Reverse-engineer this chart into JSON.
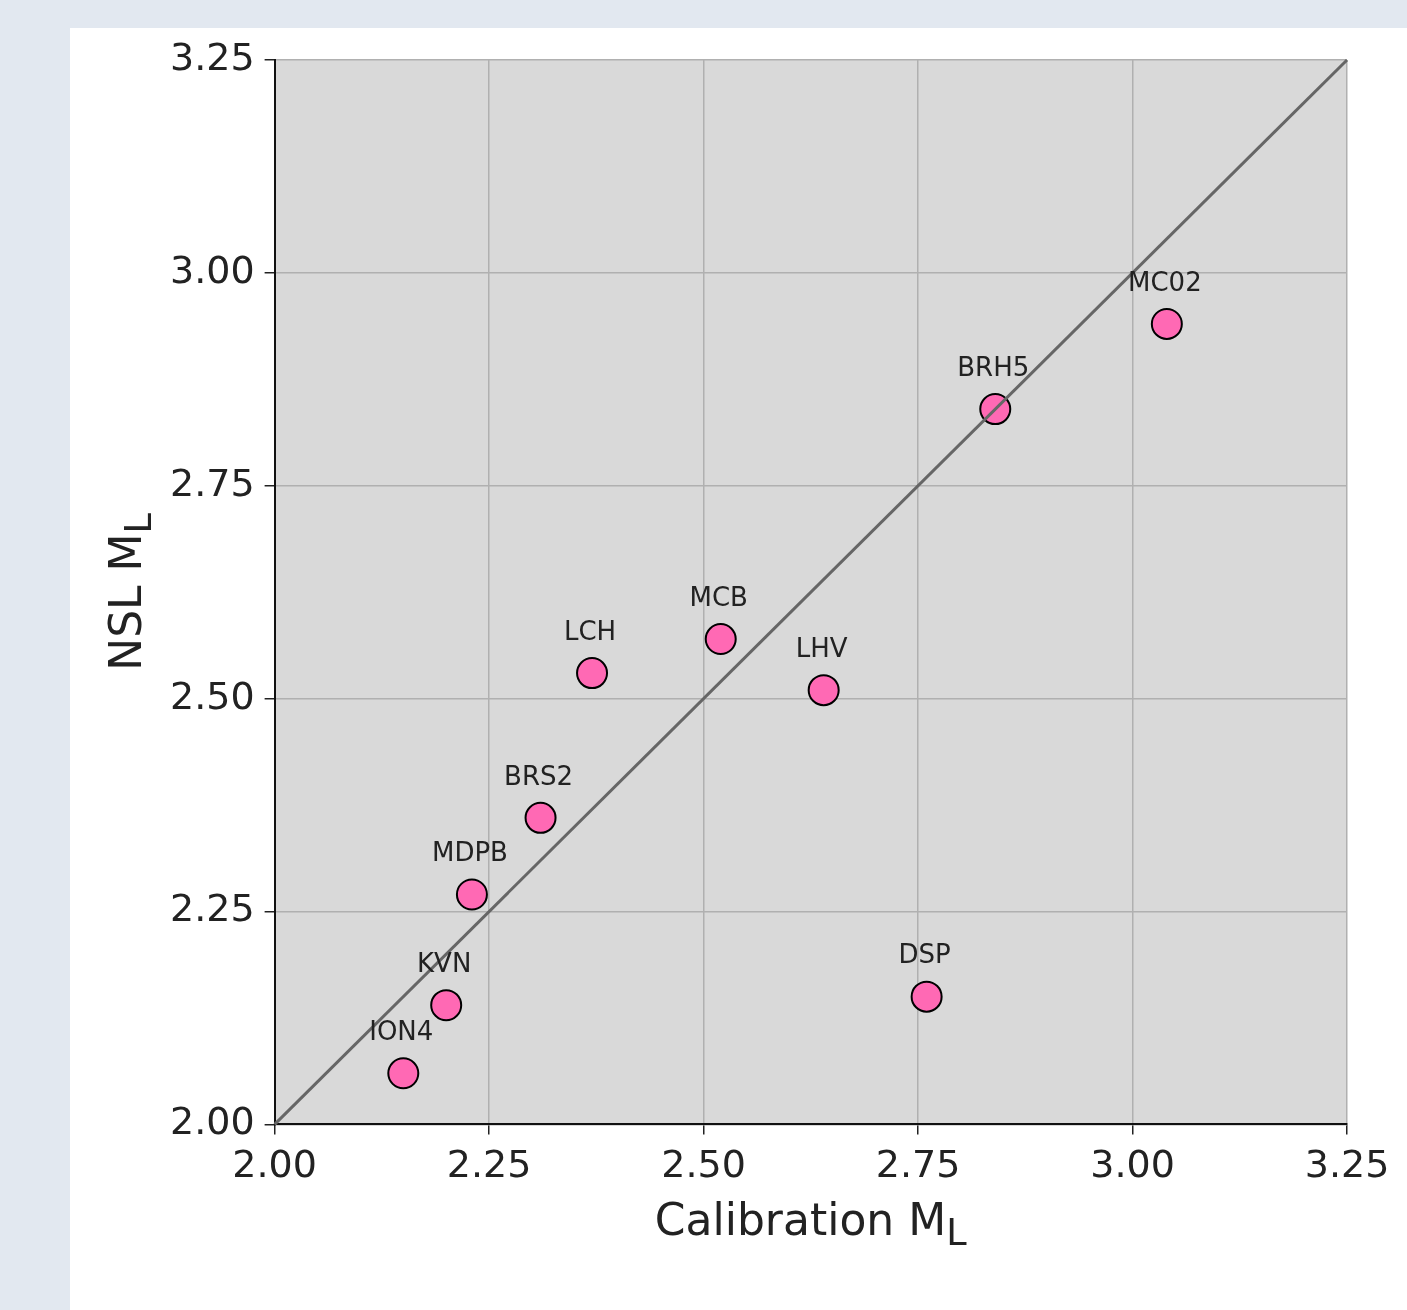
{
  "chart_data": {
    "type": "scatter",
    "xlabel": "Calibration M$_{L}$",
    "ylabel": "NSL M$_{L}$",
    "xlim": [
      2,
      3.25
    ],
    "ylim": [
      2,
      3.25
    ],
    "xticks": [
      {
        "value": 2,
        "label": "2.00"
      },
      {
        "value": 2.25,
        "label": "2.25"
      },
      {
        "value": 2.5,
        "label": "2.50"
      },
      {
        "value": 2.75,
        "label": "2.75"
      },
      {
        "value": 3,
        "label": "3.00"
      },
      {
        "value": 3.25,
        "label": "3.25"
      }
    ],
    "yticks": [
      {
        "value": 2,
        "label": "2.00"
      },
      {
        "value": 2.25,
        "label": "2.25"
      },
      {
        "value": 2.5,
        "label": "2.50"
      },
      {
        "value": 2.75,
        "label": "2.75"
      },
      {
        "value": 3,
        "label": "3.00"
      },
      {
        "value": 3.25,
        "label": "3.25"
      }
    ],
    "grid": true,
    "series": [
      {
        "type": "line",
        "marker": "none",
        "color": "#666666",
        "x": [
          2,
          3.25
        ],
        "values": [
          2,
          3.25
        ]
      },
      {
        "marker": "circle",
        "color": "#ff69b4",
        "x": [
          2.15,
          2.2,
          2.23,
          2.31,
          2.37,
          2.52,
          2.64,
          2.76,
          2.84,
          3.04
        ],
        "values": [
          2.06,
          2.14,
          2.27,
          2.36,
          2.53,
          2.57,
          2.51,
          2.15,
          2.84,
          2.94
        ]
      }
    ],
    "annotations": [
      {
        "text": "ION4",
        "x": 2.15,
        "y": 2.06
      },
      {
        "text": "KVN",
        "x": 2.2,
        "y": 2.14
      },
      {
        "text": "MDPB",
        "x": 2.23,
        "y": 2.27
      },
      {
        "text": "BRS2",
        "x": 2.31,
        "y": 2.36
      },
      {
        "text": "LCH",
        "x": 2.37,
        "y": 2.53
      },
      {
        "text": "MCB",
        "x": 2.52,
        "y": 2.57
      },
      {
        "text": "LHV",
        "x": 2.64,
        "y": 2.51
      },
      {
        "text": "DSP",
        "x": 2.76,
        "y": 2.15
      },
      {
        "text": "BRH5",
        "x": 2.84,
        "y": 2.84
      },
      {
        "text": "MC02",
        "x": 3.04,
        "y": 2.94
      }
    ]
  }
}
